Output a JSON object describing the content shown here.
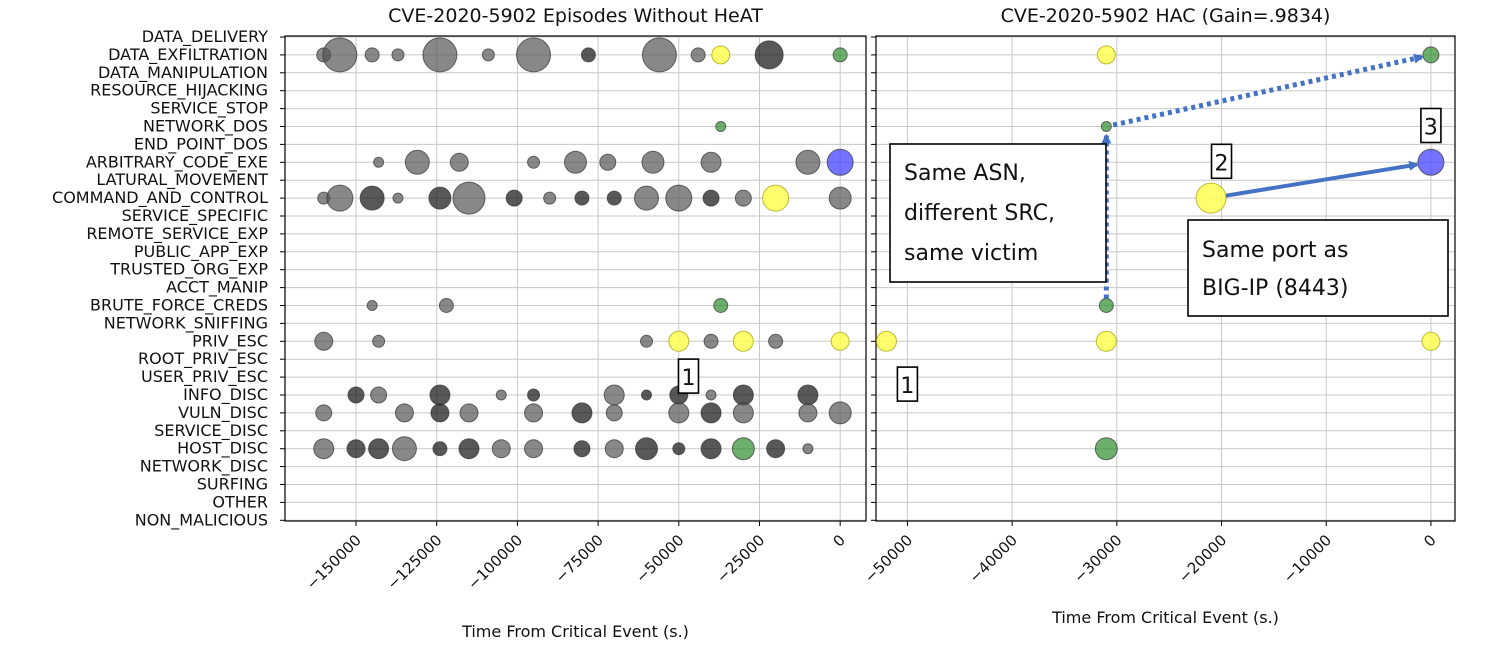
{
  "chart_data": [
    {
      "type": "scatter",
      "title": "CVE-2020-5902 Episodes Without HeAT",
      "xlabel": "Time From Critical Event (s.)",
      "ylabel": "",
      "xlim": [
        -172000,
        8000
      ],
      "xticks": [
        -150000,
        -125000,
        -100000,
        -75000,
        -50000,
        -25000,
        0
      ],
      "xtick_labels": [
        "−150000",
        "−125000",
        "−100000",
        "−75000",
        "−50000",
        "−25000",
        "0"
      ],
      "categories": [
        "DATA_DELIVERY",
        "DATA_EXFILTRATION",
        "DATA_MANIPULATION",
        "RESOURCE_HIJACKING",
        "SERVICE_STOP",
        "NETWORK_DOS",
        "END_POINT_DOS",
        "ARBITRARY_CODE_EXE",
        "LATURAL_MOVEMENT",
        "COMMAND_AND_CONTROL",
        "SERVICE_SPECIFIC",
        "REMOTE_SERVICE_EXP",
        "PUBLIC_APP_EXP",
        "TRUSTED_ORG_EXP",
        "ACCT_MANIP",
        "BRUTE_FORCE_CREDS",
        "NETWORK_SNIFFING",
        "PRIV_ESC",
        "ROOT_PRIV_ESC",
        "USER_PRIV_ESC",
        "INFO_DISC",
        "VULN_DISC",
        "SERVICE_DISC",
        "HOST_DISC",
        "NETWORK_DISC",
        "SURFING",
        "OTHER",
        "NON_MALICIOUS"
      ],
      "points": [
        {
          "x": -160000,
          "y": "DATA_EXFILTRATION",
          "size": 7,
          "color": "gray"
        },
        {
          "x": -155000,
          "y": "DATA_EXFILTRATION",
          "size": 17,
          "color": "gray"
        },
        {
          "x": -145000,
          "y": "DATA_EXFILTRATION",
          "size": 7,
          "color": "gray"
        },
        {
          "x": -137000,
          "y": "DATA_EXFILTRATION",
          "size": 6,
          "color": "gray"
        },
        {
          "x": -124000,
          "y": "DATA_EXFILTRATION",
          "size": 17,
          "color": "gray"
        },
        {
          "x": -109000,
          "y": "DATA_EXFILTRATION",
          "size": 6,
          "color": "gray"
        },
        {
          "x": -95000,
          "y": "DATA_EXFILTRATION",
          "size": 17,
          "color": "gray"
        },
        {
          "x": -78000,
          "y": "DATA_EXFILTRATION",
          "size": 7,
          "color": "black"
        },
        {
          "x": -56000,
          "y": "DATA_EXFILTRATION",
          "size": 17,
          "color": "gray"
        },
        {
          "x": -44000,
          "y": "DATA_EXFILTRATION",
          "size": 7,
          "color": "gray"
        },
        {
          "x": -37000,
          "y": "DATA_EXFILTRATION",
          "size": 9,
          "color": "yellow"
        },
        {
          "x": -22000,
          "y": "DATA_EXFILTRATION",
          "size": 14,
          "color": "black"
        },
        {
          "x": 0,
          "y": "DATA_EXFILTRATION",
          "size": 7,
          "color": "green"
        },
        {
          "x": -37000,
          "y": "NETWORK_DOS",
          "size": 5,
          "color": "green"
        },
        {
          "x": -143000,
          "y": "ARBITRARY_CODE_EXE",
          "size": 5,
          "color": "gray"
        },
        {
          "x": -131000,
          "y": "ARBITRARY_CODE_EXE",
          "size": 12,
          "color": "gray"
        },
        {
          "x": -118000,
          "y": "ARBITRARY_CODE_EXE",
          "size": 9,
          "color": "gray"
        },
        {
          "x": -95000,
          "y": "ARBITRARY_CODE_EXE",
          "size": 6,
          "color": "gray"
        },
        {
          "x": -82000,
          "y": "ARBITRARY_CODE_EXE",
          "size": 11,
          "color": "gray"
        },
        {
          "x": -72000,
          "y": "ARBITRARY_CODE_EXE",
          "size": 8,
          "color": "gray"
        },
        {
          "x": -58000,
          "y": "ARBITRARY_CODE_EXE",
          "size": 11,
          "color": "gray"
        },
        {
          "x": -40000,
          "y": "ARBITRARY_CODE_EXE",
          "size": 10,
          "color": "gray"
        },
        {
          "x": -10000,
          "y": "ARBITRARY_CODE_EXE",
          "size": 12,
          "color": "gray"
        },
        {
          "x": 0,
          "y": "ARBITRARY_CODE_EXE",
          "size": 13,
          "color": "blue"
        },
        {
          "x": -160000,
          "y": "COMMAND_AND_CONTROL",
          "size": 6,
          "color": "gray"
        },
        {
          "x": -155000,
          "y": "COMMAND_AND_CONTROL",
          "size": 13,
          "color": "gray"
        },
        {
          "x": -145000,
          "y": "COMMAND_AND_CONTROL",
          "size": 12,
          "color": "black"
        },
        {
          "x": -137000,
          "y": "COMMAND_AND_CONTROL",
          "size": 5,
          "color": "gray"
        },
        {
          "x": -124000,
          "y": "COMMAND_AND_CONTROL",
          "size": 11,
          "color": "black"
        },
        {
          "x": -115000,
          "y": "COMMAND_AND_CONTROL",
          "size": 16,
          "color": "gray"
        },
        {
          "x": -101000,
          "y": "COMMAND_AND_CONTROL",
          "size": 8,
          "color": "black"
        },
        {
          "x": -90000,
          "y": "COMMAND_AND_CONTROL",
          "size": 6,
          "color": "gray"
        },
        {
          "x": -80000,
          "y": "COMMAND_AND_CONTROL",
          "size": 7,
          "color": "black"
        },
        {
          "x": -70000,
          "y": "COMMAND_AND_CONTROL",
          "size": 7,
          "color": "black"
        },
        {
          "x": -60000,
          "y": "COMMAND_AND_CONTROL",
          "size": 12,
          "color": "gray"
        },
        {
          "x": -50000,
          "y": "COMMAND_AND_CONTROL",
          "size": 13,
          "color": "gray"
        },
        {
          "x": -40000,
          "y": "COMMAND_AND_CONTROL",
          "size": 8,
          "color": "black"
        },
        {
          "x": -30000,
          "y": "COMMAND_AND_CONTROL",
          "size": 8,
          "color": "gray"
        },
        {
          "x": -20000,
          "y": "COMMAND_AND_CONTROL",
          "size": 13,
          "color": "yellow"
        },
        {
          "x": 0,
          "y": "COMMAND_AND_CONTROL",
          "size": 11,
          "color": "gray"
        },
        {
          "x": -145000,
          "y": "BRUTE_FORCE_CREDS",
          "size": 5,
          "color": "gray"
        },
        {
          "x": -122000,
          "y": "BRUTE_FORCE_CREDS",
          "size": 7,
          "color": "gray"
        },
        {
          "x": -37000,
          "y": "BRUTE_FORCE_CREDS",
          "size": 7,
          "color": "green"
        },
        {
          "x": -160000,
          "y": "PRIV_ESC",
          "size": 9,
          "color": "gray"
        },
        {
          "x": -143000,
          "y": "PRIV_ESC",
          "size": 6,
          "color": "gray"
        },
        {
          "x": -60000,
          "y": "PRIV_ESC",
          "size": 6,
          "color": "gray"
        },
        {
          "x": -50000,
          "y": "PRIV_ESC",
          "size": 10,
          "color": "yellow"
        },
        {
          "x": -40000,
          "y": "PRIV_ESC",
          "size": 7,
          "color": "gray"
        },
        {
          "x": -30000,
          "y": "PRIV_ESC",
          "size": 10,
          "color": "yellow"
        },
        {
          "x": -20000,
          "y": "PRIV_ESC",
          "size": 7,
          "color": "gray"
        },
        {
          "x": 0,
          "y": "PRIV_ESC",
          "size": 9,
          "color": "yellow"
        },
        {
          "x": -150000,
          "y": "INFO_DISC",
          "size": 8,
          "color": "black"
        },
        {
          "x": -143000,
          "y": "INFO_DISC",
          "size": 8,
          "color": "gray"
        },
        {
          "x": -124000,
          "y": "INFO_DISC",
          "size": 10,
          "color": "black"
        },
        {
          "x": -105000,
          "y": "INFO_DISC",
          "size": 5,
          "color": "gray"
        },
        {
          "x": -95000,
          "y": "INFO_DISC",
          "size": 6,
          "color": "black"
        },
        {
          "x": -70000,
          "y": "INFO_DISC",
          "size": 10,
          "color": "gray"
        },
        {
          "x": -60000,
          "y": "INFO_DISC",
          "size": 5,
          "color": "black"
        },
        {
          "x": -50000,
          "y": "INFO_DISC",
          "size": 9,
          "color": "black"
        },
        {
          "x": -40000,
          "y": "INFO_DISC",
          "size": 5,
          "color": "gray"
        },
        {
          "x": -30000,
          "y": "INFO_DISC",
          "size": 10,
          "color": "black"
        },
        {
          "x": -10000,
          "y": "INFO_DISC",
          "size": 10,
          "color": "black"
        },
        {
          "x": -160000,
          "y": "VULN_DISC",
          "size": 8,
          "color": "gray"
        },
        {
          "x": -135000,
          "y": "VULN_DISC",
          "size": 9,
          "color": "gray"
        },
        {
          "x": -124000,
          "y": "VULN_DISC",
          "size": 9,
          "color": "black"
        },
        {
          "x": -115000,
          "y": "VULN_DISC",
          "size": 9,
          "color": "gray"
        },
        {
          "x": -95000,
          "y": "VULN_DISC",
          "size": 9,
          "color": "gray"
        },
        {
          "x": -80000,
          "y": "VULN_DISC",
          "size": 10,
          "color": "black"
        },
        {
          "x": -70000,
          "y": "VULN_DISC",
          "size": 8,
          "color": "gray"
        },
        {
          "x": -50000,
          "y": "VULN_DISC",
          "size": 10,
          "color": "gray"
        },
        {
          "x": -40000,
          "y": "VULN_DISC",
          "size": 10,
          "color": "black"
        },
        {
          "x": -30000,
          "y": "VULN_DISC",
          "size": 10,
          "color": "gray"
        },
        {
          "x": -10000,
          "y": "VULN_DISC",
          "size": 9,
          "color": "gray"
        },
        {
          "x": 0,
          "y": "VULN_DISC",
          "size": 11,
          "color": "gray"
        },
        {
          "x": -160000,
          "y": "HOST_DISC",
          "size": 10,
          "color": "gray"
        },
        {
          "x": -150000,
          "y": "HOST_DISC",
          "size": 9,
          "color": "black"
        },
        {
          "x": -143000,
          "y": "HOST_DISC",
          "size": 10,
          "color": "black"
        },
        {
          "x": -135000,
          "y": "HOST_DISC",
          "size": 12,
          "color": "gray"
        },
        {
          "x": -124000,
          "y": "HOST_DISC",
          "size": 7,
          "color": "black"
        },
        {
          "x": -115000,
          "y": "HOST_DISC",
          "size": 10,
          "color": "black"
        },
        {
          "x": -105000,
          "y": "HOST_DISC",
          "size": 9,
          "color": "gray"
        },
        {
          "x": -95000,
          "y": "HOST_DISC",
          "size": 9,
          "color": "gray"
        },
        {
          "x": -80000,
          "y": "HOST_DISC",
          "size": 8,
          "color": "black"
        },
        {
          "x": -70000,
          "y": "HOST_DISC",
          "size": 9,
          "color": "gray"
        },
        {
          "x": -60000,
          "y": "HOST_DISC",
          "size": 11,
          "color": "black"
        },
        {
          "x": -50000,
          "y": "HOST_DISC",
          "size": 6,
          "color": "black"
        },
        {
          "x": -40000,
          "y": "HOST_DISC",
          "size": 10,
          "color": "black"
        },
        {
          "x": -30000,
          "y": "HOST_DISC",
          "size": 11,
          "color": "green"
        },
        {
          "x": -20000,
          "y": "HOST_DISC",
          "size": 9,
          "color": "black"
        },
        {
          "x": -10000,
          "y": "HOST_DISC",
          "size": 5,
          "color": "gray"
        }
      ],
      "annotations": [
        {
          "label": "1",
          "x": -47000,
          "y": "USER_PRIV_ESC"
        }
      ]
    },
    {
      "type": "scatter",
      "title": "CVE-2020-5902 HAC (Gain=.9834)",
      "xlabel": "Time From Critical Event (s.)",
      "ylabel": "",
      "xlim": [
        -53000,
        2300
      ],
      "xticks": [
        -50000,
        -40000,
        -30000,
        -20000,
        -10000,
        0
      ],
      "xtick_labels": [
        "−50000",
        "−40000",
        "−30000",
        "−20000",
        "−10000",
        "0"
      ],
      "points": [
        {
          "x": -31000,
          "y": "DATA_EXFILTRATION",
          "size": 9,
          "color": "yellow"
        },
        {
          "x": 0,
          "y": "DATA_EXFILTRATION",
          "size": 8,
          "color": "green"
        },
        {
          "x": -31000,
          "y": "NETWORK_DOS",
          "size": 5,
          "color": "green"
        },
        {
          "x": 0,
          "y": "ARBITRARY_CODE_EXE",
          "size": 13,
          "color": "blue"
        },
        {
          "x": -21000,
          "y": "COMMAND_AND_CONTROL",
          "size": 15,
          "color": "yellow"
        },
        {
          "x": -31000,
          "y": "BRUTE_FORCE_CREDS",
          "size": 7,
          "color": "green"
        },
        {
          "x": -52000,
          "y": "PRIV_ESC",
          "size": 10,
          "color": "yellow"
        },
        {
          "x": -31000,
          "y": "PRIV_ESC",
          "size": 10,
          "color": "yellow"
        },
        {
          "x": 0,
          "y": "PRIV_ESC",
          "size": 9,
          "color": "yellow"
        },
        {
          "x": -31000,
          "y": "HOST_DISC",
          "size": 11,
          "color": "green"
        }
      ],
      "annotations": [
        {
          "label": "1",
          "x": -50000,
          "y": "USER_PRIV_ESC"
        },
        {
          "label": "2",
          "x": -20000,
          "y": "ARBITRARY_CODE_EXE"
        },
        {
          "label": "3",
          "x": 0,
          "y": "NETWORK_DOS"
        }
      ],
      "text_boxes": [
        {
          "lines": [
            "Same ASN,",
            "different SRC,",
            "same victim"
          ]
        },
        {
          "lines": [
            "Same port as",
            "BIG-IP (8443)"
          ]
        }
      ],
      "arrows": [
        {
          "from": {
            "x": -31000,
            "y": "BRUTE_FORCE_CREDS"
          },
          "to": {
            "x": -31000,
            "y": "NETWORK_DOS"
          },
          "style": "dotted"
        },
        {
          "from": {
            "x": -31000,
            "y": "NETWORK_DOS"
          },
          "to": {
            "x": 0,
            "y": "DATA_EXFILTRATION"
          },
          "style": "dotted"
        },
        {
          "from": {
            "x": -21000,
            "y": "COMMAND_AND_CONTROL"
          },
          "to": {
            "x": 0,
            "y": "ARBITRARY_CODE_EXE"
          },
          "style": "solid"
        }
      ]
    }
  ],
  "colors": {
    "gray": "#555555",
    "black": "#111111",
    "yellow": "#ffff55",
    "green": "#2e8b2e",
    "blue": "#4444ff",
    "arrow": "#4472c4"
  }
}
